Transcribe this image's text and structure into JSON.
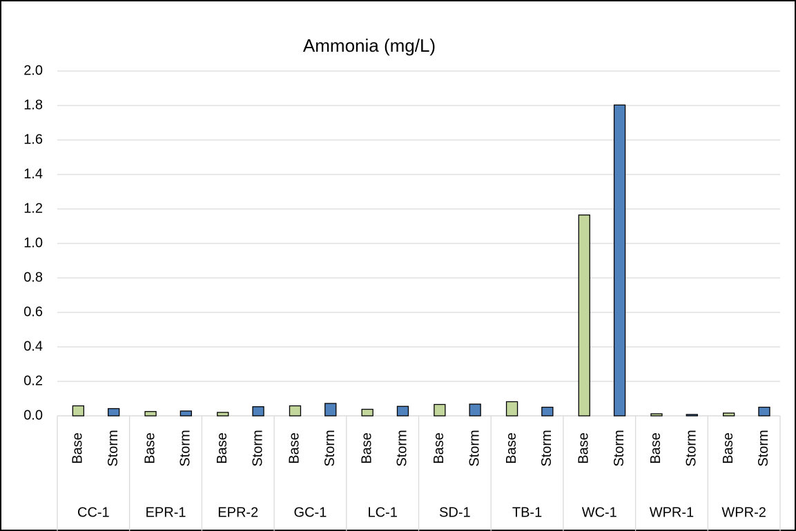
{
  "chart_data": {
    "type": "bar",
    "title": "Ammonia (mg/L)",
    "categories": [
      "CC-1",
      "EPR-1",
      "EPR-2",
      "GC-1",
      "LC-1",
      "SD-1",
      "TB-1",
      "WC-1",
      "WPR-1",
      "WPR-2"
    ],
    "series": [
      {
        "name": "Base",
        "color": "#c3d69b",
        "values": [
          0.058,
          0.025,
          0.02,
          0.058,
          0.038,
          0.066,
          0.082,
          1.165,
          0.012,
          0.016
        ]
      },
      {
        "name": "Storm",
        "color": "#4f81bd",
        "values": [
          0.042,
          0.028,
          0.053,
          0.072,
          0.055,
          0.068,
          0.05,
          1.803,
          0.008,
          0.05
        ]
      }
    ],
    "ylim": [
      0,
      2
    ],
    "yticks": [
      {
        "value": 0,
        "label": "0.0"
      },
      0.2,
      0.4,
      0.6,
      0.8,
      {
        "value": 1,
        "label": "1.0"
      },
      1.2,
      1.4,
      1.6,
      1.8,
      {
        "value": 2,
        "label": "2.0"
      }
    ],
    "grid": true
  }
}
